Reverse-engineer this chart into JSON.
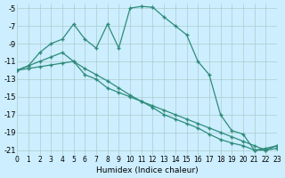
{
  "xlabel": "Humidex (Indice chaleur)",
  "ylabel": "",
  "bg_color": "#cceeff",
  "line_color": "#2e8b7a",
  "grid_color": "#aacccc",
  "xlim": [
    0,
    23
  ],
  "ylim": [
    -21.5,
    -4.5
  ],
  "xticks": [
    0,
    1,
    2,
    3,
    4,
    5,
    6,
    7,
    8,
    9,
    10,
    11,
    12,
    13,
    14,
    15,
    16,
    17,
    18,
    19,
    20,
    21,
    22,
    23
  ],
  "yticks": [
    -5,
    -7,
    -9,
    -11,
    -13,
    -15,
    -17,
    -19,
    -21
  ],
  "line1_x": [
    0,
    1,
    2,
    3,
    4,
    5,
    6,
    7,
    8,
    9,
    10,
    11,
    12,
    13,
    14,
    15,
    16,
    17,
    18,
    19,
    20,
    21,
    22,
    23
  ],
  "line1_y": [
    -12,
    -11.5,
    -11,
    -10.5,
    -10,
    -11,
    -12.5,
    -13.0,
    -14.0,
    -14.5,
    -15.0,
    -15.5,
    -16.0,
    -16.5,
    -17.0,
    -17.5,
    -18.0,
    -18.5,
    -19.0,
    -19.5,
    -20.0,
    -20.5,
    -21.0,
    -20.5
  ],
  "line2_x": [
    0,
    1,
    2,
    3,
    4,
    5,
    6,
    7,
    8,
    9,
    10,
    11,
    12,
    13,
    14,
    15,
    16,
    17,
    18,
    19,
    20,
    21,
    22,
    23
  ],
  "line2_y": [
    -12,
    -11.8,
    -11.6,
    -11.4,
    -11.2,
    -11.0,
    -11.8,
    -12.5,
    -13.2,
    -14.0,
    -14.8,
    -15.5,
    -16.2,
    -17.0,
    -17.5,
    -18.0,
    -18.5,
    -19.2,
    -19.8,
    -20.2,
    -20.5,
    -21.0,
    -21.0,
    -20.8
  ],
  "line3_x": [
    0,
    1,
    2,
    3,
    4,
    5,
    6,
    7,
    8,
    9,
    10,
    11,
    12,
    13,
    14,
    15,
    16,
    17,
    18,
    19,
    20,
    21,
    22,
    23
  ],
  "line3_y": [
    -12.0,
    -11.5,
    -10.0,
    -9.0,
    -8.5,
    -6.8,
    -8.5,
    -9.5,
    -6.8,
    -9.5,
    -5.0,
    -4.8,
    -4.9,
    -6.0,
    -7.0,
    -8.0,
    -11.0,
    -12.5,
    -17.0,
    -18.8,
    -19.2,
    -21.0,
    -20.8,
    -20.5
  ]
}
